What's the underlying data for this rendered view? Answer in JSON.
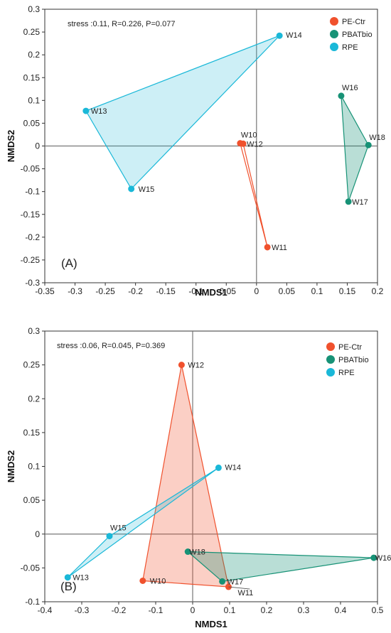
{
  "chart_data": [
    {
      "type": "scatter",
      "panel_label": "(A)",
      "annotation": "stress :0.11, R=0.226, P=0.077",
      "xlabel": "NMDS1",
      "ylabel": "NMDS2",
      "xlim": [
        -0.35,
        0.2
      ],
      "ylim": [
        -0.3,
        0.3
      ],
      "xticks": [
        "-0.35",
        "-0.3",
        "-0.25",
        "-0.2",
        "-0.15",
        "-0.1",
        "-0.05",
        "0",
        "0.05",
        "0.1",
        "0.15",
        "0.2"
      ],
      "yticks": [
        "-0.3",
        "-0.25",
        "-0.2",
        "-0.15",
        "-0.1",
        "-0.05",
        "0",
        "0.05",
        "0.1",
        "0.15",
        "0.2",
        "0.25",
        "0.3"
      ],
      "legend": {
        "position": "top-right"
      },
      "series": [
        {
          "name": "PE-Ctr",
          "color": "#f0512d",
          "fill_opacity": 0.0,
          "points": [
            {
              "label": "W10",
              "x": -0.027,
              "y": 0.006
            },
            {
              "label": "W12",
              "x": -0.022,
              "y": 0.005
            },
            {
              "label": "W11",
              "x": 0.018,
              "y": -0.222
            }
          ]
        },
        {
          "name": "PBATbio",
          "color": "#179276",
          "fill_opacity": 0.3,
          "points": [
            {
              "label": "W16",
              "x": 0.14,
              "y": 0.11
            },
            {
              "label": "W18",
              "x": 0.185,
              "y": 0.002
            },
            {
              "label": "W17",
              "x": 0.152,
              "y": -0.122
            }
          ]
        },
        {
          "name": "RPE",
          "color": "#1ab8d8",
          "fill_opacity": 0.22,
          "points": [
            {
              "label": "W14",
              "x": 0.038,
              "y": 0.242
            },
            {
              "label": "W13",
              "x": -0.282,
              "y": 0.077
            },
            {
              "label": "W15",
              "x": -0.207,
              "y": -0.094
            }
          ]
        }
      ]
    },
    {
      "type": "scatter",
      "panel_label": "(B)",
      "annotation": "stress :0.06, R=0.045, P=0.369",
      "xlabel": "NMDS1",
      "ylabel": "NMDS2",
      "xlim": [
        -0.4,
        0.5
      ],
      "ylim": [
        -0.1,
        0.3
      ],
      "xticks": [
        "-0.4",
        "-0.3",
        "-0.2",
        "-0.1",
        "0",
        "0.1",
        "0.2",
        "0.3",
        "0.4",
        "0.5"
      ],
      "yticks": [
        "-0.1",
        "-0.05",
        "0",
        "0.05",
        "0.1",
        "0.15",
        "0.2",
        "0.25",
        "0.3"
      ],
      "legend": {
        "position": "top-right"
      },
      "series": [
        {
          "name": "PE-Ctr",
          "color": "#f0512d",
          "fill_opacity": 0.28,
          "points": [
            {
              "label": "W12",
              "x": -0.03,
              "y": 0.25
            },
            {
              "label": "W10",
              "x": -0.135,
              "y": -0.069
            },
            {
              "label": "W11",
              "x": 0.097,
              "y": -0.078
            }
          ]
        },
        {
          "name": "PBATbio",
          "color": "#179276",
          "fill_opacity": 0.3,
          "points": [
            {
              "label": "W18",
              "x": -0.013,
              "y": -0.026
            },
            {
              "label": "W16",
              "x": 0.49,
              "y": -0.035
            },
            {
              "label": "W17",
              "x": 0.08,
              "y": -0.07
            }
          ]
        },
        {
          "name": "RPE",
          "color": "#1ab8d8",
          "fill_opacity": 0.22,
          "points": [
            {
              "label": "W14",
              "x": 0.07,
              "y": 0.098
            },
            {
              "label": "W15",
              "x": -0.225,
              "y": -0.003
            },
            {
              "label": "W13",
              "x": -0.338,
              "y": -0.064
            }
          ]
        }
      ]
    }
  ]
}
